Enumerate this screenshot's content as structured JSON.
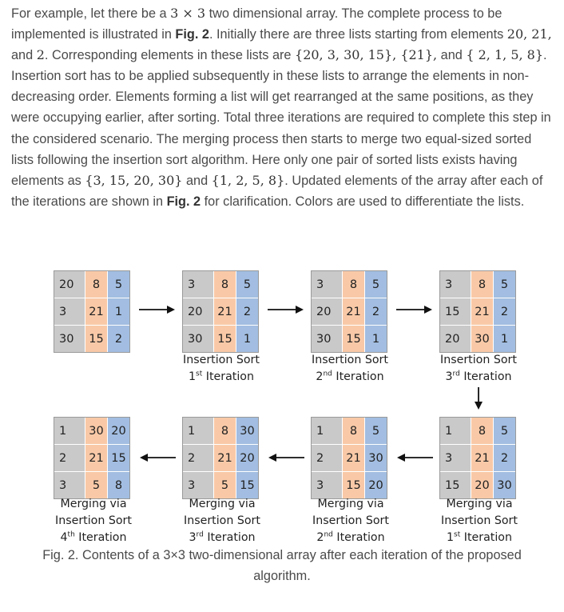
{
  "paragraph": {
    "t1": "For example, let there be a ",
    "m1": "3 × 3",
    "t2": " two dimensional array. The complete process to be implemented is illustrated in ",
    "ref1": "Fig. 2",
    "t3": ". Initially there are three lists starting from elements ",
    "m2": "20, 21,",
    "t4": " and ",
    "m3": "2",
    "t5": ". Corresponding elements in these lists are ",
    "m4": "{20, 3, 30, 15}, {21},",
    "t6": " and ",
    "m5": "{ 2, 1, 5, 8}",
    "t7": ". Insertion sort has to be applied subsequently in these lists to arrange the elements in non-decreasing order. Elements forming a list will get rearranged at the same positions, as they were occupying earlier, after sorting. Total three iterations are required to complete this step in the considered scenario. The merging process then starts to merge two equal-sized sorted lists following the insertion sort algorithm. Here only one pair of sorted lists exists having elements as ",
    "m6": "{3, 15, 20, 30}",
    "t8": " and ",
    "m7": "{1, 2, 5, 8}",
    "t9": ". Updated elements of the array after each of the iterations are shown in ",
    "ref2": "Fig. 2",
    "t10": " for clarification. Colors are used to differentiate the lists."
  },
  "colors": {
    "gray": "#c9c9c9",
    "orange": "#f9c9a7",
    "blue": "#a2bde1"
  },
  "grids": {
    "g0": [
      [
        "20",
        "8",
        "5"
      ],
      [
        "3",
        "21",
        "1"
      ],
      [
        "30",
        "15",
        "2"
      ]
    ],
    "g1": [
      [
        "3",
        "8",
        "5"
      ],
      [
        "20",
        "21",
        "2"
      ],
      [
        "30",
        "15",
        "1"
      ]
    ],
    "g2": [
      [
        "3",
        "8",
        "5"
      ],
      [
        "20",
        "21",
        "2"
      ],
      [
        "30",
        "15",
        "1"
      ]
    ],
    "g3": [
      [
        "3",
        "8",
        "5"
      ],
      [
        "15",
        "21",
        "2"
      ],
      [
        "20",
        "30",
        "1"
      ]
    ],
    "g4": [
      [
        "1",
        "8",
        "5"
      ],
      [
        "3",
        "21",
        "2"
      ],
      [
        "15",
        "20",
        "30"
      ]
    ],
    "g5": [
      [
        "1",
        "8",
        "5"
      ],
      [
        "2",
        "21",
        "30"
      ],
      [
        "3",
        "15",
        "20"
      ]
    ],
    "g6": [
      [
        "1",
        "8",
        "30"
      ],
      [
        "2",
        "21",
        "20"
      ],
      [
        "3",
        "5",
        "15"
      ]
    ],
    "g7": [
      [
        "1",
        "30",
        "20"
      ],
      [
        "2",
        "21",
        "15"
      ],
      [
        "3",
        "5",
        "8"
      ]
    ]
  },
  "captions": {
    "insertion_sort": "Insertion Sort",
    "merging_via": "Merging via",
    "iteration": "Iteration",
    "sup1": "st",
    "sup2": "nd",
    "sup3": "rd",
    "sup4": "th",
    "n1": "1",
    "n2": "2",
    "n3": "3",
    "n4": "4"
  },
  "figure_caption": "Fig. 2. Contents of a 3×3 two-dimensional array after each iteration of the proposed algorithm."
}
